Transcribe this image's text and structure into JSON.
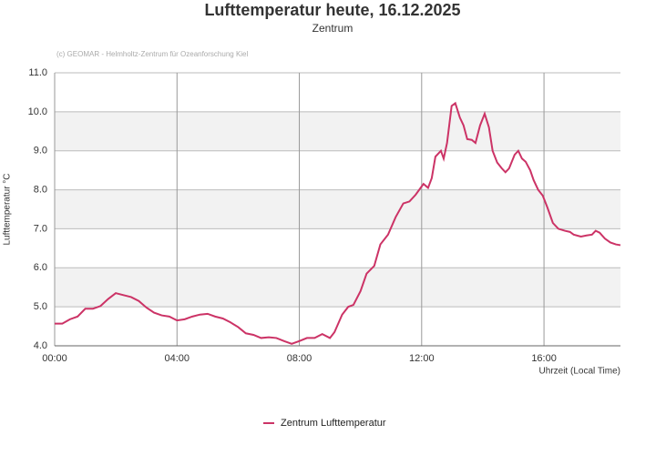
{
  "chart_data": {
    "type": "line",
    "title": "Lufttemperatur heute, 16.12.2025",
    "subtitle": "Zentrum",
    "credit": "(c) GEOMAR - Helmholtz-Zentrum für Ozeanforschung Kiel",
    "y_label": "Lufttemperatur °C",
    "x_label": "Uhrzeit (Local Time)",
    "xlim": [
      0,
      18.5
    ],
    "xticks": [
      {
        "value": 0,
        "label": "00:00"
      },
      {
        "value": 4,
        "label": "04:00"
      },
      {
        "value": 8,
        "label": "08:00"
      },
      {
        "value": 12,
        "label": "12:00"
      },
      {
        "value": 16,
        "label": "16:00"
      }
    ],
    "ylim": [
      4,
      11
    ],
    "yticks": [
      {
        "value": 4,
        "label": "4.0"
      },
      {
        "value": 5,
        "label": "5.0"
      },
      {
        "value": 6,
        "label": "6.0"
      },
      {
        "value": 7,
        "label": "7.0"
      },
      {
        "value": 8,
        "label": "8.0"
      },
      {
        "value": 9,
        "label": "9.0"
      },
      {
        "value": 10,
        "label": "10.0"
      },
      {
        "value": 11,
        "label": "11.0"
      }
    ],
    "grid": true,
    "legend": "bottom",
    "series": [
      {
        "name": "Zentrum Lufttemperatur",
        "color": "#cc3366",
        "x": [
          0,
          0.25,
          0.5,
          0.75,
          1.0,
          1.25,
          1.5,
          1.75,
          2.0,
          2.25,
          2.5,
          2.75,
          3.0,
          3.25,
          3.5,
          3.75,
          4.0,
          4.25,
          4.5,
          4.75,
          5.0,
          5.25,
          5.5,
          5.75,
          6.0,
          6.25,
          6.5,
          6.75,
          7.0,
          7.25,
          7.5,
          7.75,
          8.0,
          8.25,
          8.5,
          8.75,
          9.0,
          9.15,
          9.4,
          9.6,
          9.77,
          10.0,
          10.2,
          10.45,
          10.65,
          10.9,
          11.15,
          11.4,
          11.6,
          11.8,
          12.06,
          12.21,
          12.33,
          12.45,
          12.63,
          12.72,
          12.83,
          12.98,
          13.1,
          13.25,
          13.37,
          13.49,
          13.64,
          13.76,
          13.91,
          14.06,
          14.2,
          14.32,
          14.47,
          14.62,
          14.74,
          14.86,
          15.04,
          15.16,
          15.28,
          15.4,
          15.55,
          15.66,
          15.81,
          15.96,
          16.11,
          16.29,
          16.47,
          16.68,
          16.85,
          16.97,
          17.21,
          17.39,
          17.57,
          17.69,
          17.82,
          17.99,
          18.17,
          18.35,
          18.5
        ],
        "values": [
          4.57,
          4.57,
          4.68,
          4.75,
          4.95,
          4.95,
          5.02,
          5.2,
          5.35,
          5.3,
          5.25,
          5.15,
          4.98,
          4.85,
          4.78,
          4.75,
          4.65,
          4.68,
          4.75,
          4.8,
          4.82,
          4.75,
          4.7,
          4.6,
          4.48,
          4.32,
          4.28,
          4.2,
          4.22,
          4.2,
          4.12,
          4.05,
          4.12,
          4.2,
          4.2,
          4.3,
          4.2,
          4.35,
          4.8,
          5.0,
          5.05,
          5.4,
          5.85,
          6.05,
          6.6,
          6.85,
          7.3,
          7.65,
          7.7,
          7.87,
          8.15,
          8.05,
          8.3,
          8.85,
          9.0,
          8.8,
          9.2,
          10.15,
          10.22,
          9.85,
          9.65,
          9.3,
          9.28,
          9.2,
          9.65,
          9.95,
          9.6,
          9.0,
          8.7,
          8.55,
          8.45,
          8.55,
          8.9,
          9.0,
          8.8,
          8.72,
          8.5,
          8.25,
          8.0,
          7.85,
          7.55,
          7.15,
          7.0,
          6.95,
          6.92,
          6.85,
          6.8,
          6.83,
          6.85,
          6.95,
          6.9,
          6.75,
          6.65,
          6.6,
          6.58
        ]
      }
    ]
  }
}
